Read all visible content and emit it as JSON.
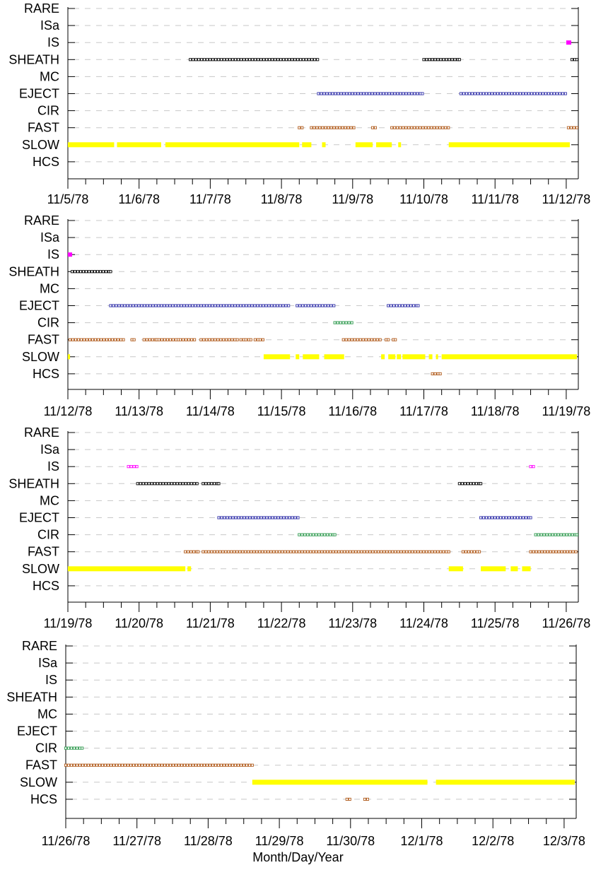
{
  "xlabel": "Month/Day/Year",
  "chart_data": [
    {
      "type": "scatter",
      "categories": [
        "RARE",
        "ISa",
        "IS",
        "SHEATH",
        "MC",
        "EJECT",
        "CIR",
        "FAST",
        "SLOW",
        "HCS"
      ],
      "x_tick_labels": [
        "11/5/78",
        "11/6/78",
        "11/7/78",
        "11/8/78",
        "11/9/78",
        "11/10/78",
        "11/11/78",
        "11/12/78"
      ],
      "xlim": [
        0,
        7.15
      ],
      "series": [
        {
          "category": "SHEATH",
          "color": "#000000",
          "style": "hollow",
          "intervals": [
            [
              1.72,
              3.52
            ],
            [
              5.0,
              5.5
            ],
            [
              7.08,
              7.15
            ]
          ]
        },
        {
          "category": "IS",
          "color": "#ff00ff",
          "style": "solid",
          "intervals": [
            [
              7.0,
              7.07
            ]
          ]
        },
        {
          "category": "EJECT",
          "color": "#3333aa",
          "style": "hollow",
          "intervals": [
            [
              3.52,
              4.98
            ],
            [
              5.52,
              7.0
            ]
          ]
        },
        {
          "category": "FAST",
          "color": "#b05a1a",
          "style": "hollow",
          "intervals": [
            [
              3.25,
              3.3
            ],
            [
              3.42,
              3.58
            ],
            [
              3.62,
              4.02
            ],
            [
              4.28,
              4.32
            ],
            [
              4.55,
              4.63
            ],
            [
              4.67,
              5.35
            ],
            [
              7.03,
              7.15
            ]
          ]
        },
        {
          "category": "SLOW",
          "color": "#ffff00",
          "style": "solid",
          "intervals": [
            [
              0.0,
              0.65
            ],
            [
              0.69,
              1.31
            ],
            [
              1.37,
              3.25
            ],
            [
              3.29,
              3.42
            ],
            [
              3.57,
              3.62
            ],
            [
              4.04,
              4.28
            ],
            [
              4.33,
              4.55
            ],
            [
              4.64,
              4.68
            ],
            [
              5.35,
              7.05
            ]
          ]
        }
      ]
    },
    {
      "type": "scatter",
      "categories": [
        "RARE",
        "ISa",
        "IS",
        "SHEATH",
        "MC",
        "EJECT",
        "CIR",
        "FAST",
        "SLOW",
        "HCS"
      ],
      "x_tick_labels": [
        "11/12/78",
        "11/13/78",
        "11/14/78",
        "11/15/78",
        "11/16/78",
        "11/17/78",
        "11/18/78",
        "11/19/78"
      ],
      "xlim": [
        0,
        7.15
      ],
      "series": [
        {
          "category": "IS",
          "color": "#ff00ff",
          "style": "solid",
          "intervals": [
            [
              0.0,
              0.06
            ]
          ]
        },
        {
          "category": "SHEATH",
          "color": "#000000",
          "style": "hollow",
          "intervals": [
            [
              0.06,
              0.6
            ]
          ]
        },
        {
          "category": "EJECT",
          "color": "#3333aa",
          "style": "hollow",
          "intervals": [
            [
              0.6,
              3.1
            ],
            [
              3.22,
              3.75
            ],
            [
              4.5,
              4.92
            ]
          ]
        },
        {
          "category": "CIR",
          "color": "#2e9a4e",
          "style": "hollow",
          "intervals": [
            [
              3.75,
              4.0
            ]
          ]
        },
        {
          "category": "FAST",
          "color": "#b05a1a",
          "style": "hollow",
          "intervals": [
            [
              0.03,
              0.78
            ],
            [
              0.9,
              0.93
            ],
            [
              1.07,
              1.25
            ],
            [
              1.28,
              1.55
            ],
            [
              1.58,
              1.78
            ],
            [
              1.87,
              2.38
            ],
            [
              2.43,
              2.47
            ],
            [
              2.5,
              2.57
            ],
            [
              2.63,
              2.67
            ],
            [
              2.7,
              2.75
            ],
            [
              3.87,
              4.4
            ],
            [
              4.47,
              4.5
            ],
            [
              4.57,
              4.6
            ]
          ]
        },
        {
          "category": "SLOW",
          "color": "#ffff00",
          "style": "solid",
          "intervals": [
            [
              0.0,
              0.03
            ],
            [
              2.75,
              3.12
            ],
            [
              3.2,
              3.25
            ],
            [
              3.3,
              3.53
            ],
            [
              3.6,
              3.88
            ],
            [
              4.4,
              4.45
            ],
            [
              4.5,
              4.6
            ],
            [
              4.62,
              4.68
            ],
            [
              4.7,
              5.02
            ],
            [
              5.07,
              5.12
            ],
            [
              5.17,
              5.2
            ],
            [
              5.25,
              7.15
            ]
          ]
        },
        {
          "category": "HCS",
          "color": "#b05a1a",
          "style": "hollow",
          "intervals": [
            [
              5.12,
              5.23
            ]
          ]
        }
      ]
    },
    {
      "type": "scatter",
      "categories": [
        "RARE",
        "ISa",
        "IS",
        "SHEATH",
        "MC",
        "EJECT",
        "CIR",
        "FAST",
        "SLOW",
        "HCS"
      ],
      "x_tick_labels": [
        "11/19/78",
        "11/20/78",
        "11/21/78",
        "11/22/78",
        "11/23/78",
        "11/24/78",
        "11/25/78",
        "11/26/78"
      ],
      "xlim": [
        0,
        7.15
      ],
      "series": [
        {
          "category": "IS",
          "color": "#ff00ff",
          "style": "hollow",
          "intervals": [
            [
              0.85,
              0.98
            ],
            [
              6.5,
              6.55
            ]
          ]
        },
        {
          "category": "SHEATH",
          "color": "#000000",
          "style": "hollow",
          "intervals": [
            [
              0.98,
              1.83
            ],
            [
              1.9,
              2.12
            ],
            [
              5.5,
              5.8
            ]
          ]
        },
        {
          "category": "EJECT",
          "color": "#3333aa",
          "style": "hollow",
          "intervals": [
            [
              2.12,
              3.25
            ],
            [
              5.8,
              6.5
            ]
          ]
        },
        {
          "category": "CIR",
          "color": "#2e9a4e",
          "style": "hollow",
          "intervals": [
            [
              3.25,
              3.75
            ],
            [
              6.57,
              7.15
            ]
          ]
        },
        {
          "category": "FAST",
          "color": "#b05a1a",
          "style": "hollow",
          "intervals": [
            [
              1.65,
              1.7
            ],
            [
              1.73,
              1.83
            ],
            [
              1.9,
              5.35
            ],
            [
              5.55,
              5.78
            ],
            [
              6.5,
              7.15
            ]
          ]
        },
        {
          "category": "SLOW",
          "color": "#ffff00",
          "style": "solid",
          "intervals": [
            [
              0.0,
              1.65
            ],
            [
              1.68,
              1.73
            ],
            [
              5.35,
              5.55
            ],
            [
              5.8,
              6.15
            ],
            [
              6.22,
              6.32
            ],
            [
              6.38,
              6.5
            ]
          ]
        }
      ]
    },
    {
      "type": "scatter",
      "categories": [
        "RARE",
        "ISa",
        "IS",
        "SHEATH",
        "MC",
        "EJECT",
        "CIR",
        "FAST",
        "SLOW",
        "HCS"
      ],
      "x_tick_labels": [
        "11/26/78",
        "11/27/78",
        "11/28/78",
        "11/29/78",
        "11/30/78",
        "12/1/78",
        "12/2/78",
        "12/3/78"
      ],
      "xlim": [
        0,
        7.15
      ],
      "series": [
        {
          "category": "CIR",
          "color": "#2e9a4e",
          "style": "hollow",
          "intervals": [
            [
              0.0,
              0.23
            ]
          ]
        },
        {
          "category": "FAST",
          "color": "#b05a1a",
          "style": "hollow",
          "intervals": [
            [
              0.0,
              2.62
            ]
          ]
        },
        {
          "category": "SLOW",
          "color": "#ffff00",
          "style": "solid",
          "intervals": [
            [
              2.62,
              5.08
            ],
            [
              5.2,
              7.15
            ]
          ]
        },
        {
          "category": "HCS",
          "color": "#b05a1a",
          "style": "hollow",
          "intervals": [
            [
              3.95,
              4.0
            ],
            [
              4.2,
              4.25
            ]
          ]
        }
      ]
    }
  ]
}
